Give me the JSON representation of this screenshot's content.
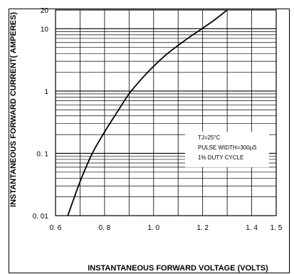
{
  "chart_data": {
    "type": "line",
    "xlabel": "INSTANTANEOUS FORWARD VOLTAGE (VOLTS)",
    "ylabel": "INSTANTANEOUS FORWARD CURRENT( AMPERES)",
    "xlim": [
      0.6,
      1.5
    ],
    "ylim": [
      0.01,
      20
    ],
    "yscale": "log",
    "grid": true,
    "x_ticks": [
      0.6,
      0.8,
      1.0,
      1.2,
      1.4,
      1.5
    ],
    "x_tick_labels": [
      "0. 6",
      "0. 8",
      "1. 0",
      "1. 2",
      "1. 4",
      "1. 5"
    ],
    "y_ticks": [
      0.01,
      0.1,
      1,
      10,
      20
    ],
    "y_tick_labels": [
      "0. 01",
      "0. 1",
      "1",
      "10",
      "20"
    ],
    "annotations": [
      "TJ=25°C",
      "PULSE WIDTH=300μS",
      "1% DUTY CYCLE"
    ],
    "series": [
      {
        "x": [
          0.65,
          0.7,
          0.75,
          0.8,
          0.85,
          0.9,
          0.95,
          1.0,
          1.05,
          1.1,
          1.15,
          1.2,
          1.25,
          1.3
        ],
        "y": [
          0.01,
          0.035,
          0.1,
          0.22,
          0.45,
          0.9,
          1.55,
          2.5,
          3.8,
          5.4,
          7.5,
          10.2,
          14.0,
          20.0
        ]
      }
    ]
  }
}
